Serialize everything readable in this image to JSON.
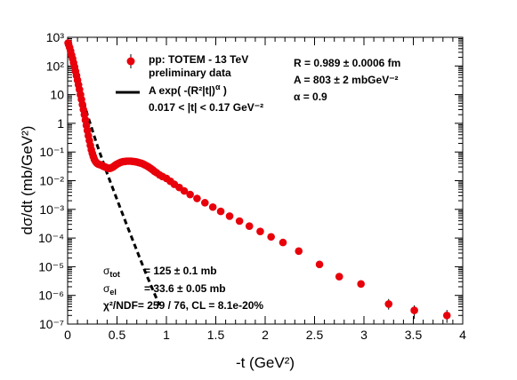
{
  "chart_data": {
    "type": "scatter",
    "xlabel": "-t (GeV²)",
    "ylabel": "dσ/dt (mb/GeV²)",
    "xlim": [
      0,
      4
    ],
    "ylim_log10": [
      -7,
      3
    ],
    "y_scale": "log",
    "x_ticks": [
      "0",
      "0.5",
      "1",
      "1.5",
      "2",
      "2.5",
      "3",
      "3.5",
      "4"
    ],
    "y_ticks": [
      "10⁻⁷",
      "10⁻⁶",
      "10⁻⁵",
      "10⁻⁴",
      "10⁻³",
      "10⁻²",
      "10⁻¹",
      "1",
      "10",
      "10²",
      "10³"
    ],
    "grid": false,
    "series": [
      {
        "name": "pp: TOTEM - 13 TeV preliminary data",
        "color": "#e8000b",
        "marker": "circle",
        "points": [
          [
            0.005,
            635
          ],
          [
            0.01,
            560
          ],
          [
            0.02,
            440
          ],
          [
            0.03,
            330
          ],
          [
            0.04,
            240
          ],
          [
            0.05,
            180
          ],
          [
            0.06,
            130
          ],
          [
            0.07,
            92
          ],
          [
            0.08,
            65
          ],
          [
            0.09,
            46
          ],
          [
            0.1,
            32
          ],
          [
            0.11,
            22
          ],
          [
            0.12,
            15
          ],
          [
            0.13,
            10
          ],
          [
            0.14,
            6.8
          ],
          [
            0.15,
            4.5
          ],
          [
            0.16,
            3.0
          ],
          [
            0.17,
            2.0
          ],
          [
            0.18,
            1.3
          ],
          [
            0.19,
            0.85
          ],
          [
            0.2,
            0.56
          ],
          [
            0.21,
            0.37
          ],
          [
            0.22,
            0.25
          ],
          [
            0.23,
            0.17
          ],
          [
            0.24,
            0.12
          ],
          [
            0.25,
            0.09
          ],
          [
            0.26,
            0.07
          ],
          [
            0.27,
            0.056
          ],
          [
            0.28,
            0.048
          ],
          [
            0.29,
            0.043
          ],
          [
            0.3,
            0.04
          ],
          [
            0.31,
            0.038
          ],
          [
            0.32,
            0.037
          ],
          [
            0.33,
            0.036
          ],
          [
            0.34,
            0.035
          ],
          [
            0.35,
            0.034
          ],
          [
            0.36,
            0.032
          ],
          [
            0.37,
            0.031
          ],
          [
            0.38,
            0.03
          ],
          [
            0.39,
            0.029
          ],
          [
            0.4,
            0.028
          ],
          [
            0.41,
            0.027
          ],
          [
            0.42,
            0.027
          ],
          [
            0.43,
            0.027
          ],
          [
            0.44,
            0.028
          ],
          [
            0.45,
            0.029
          ],
          [
            0.46,
            0.03
          ],
          [
            0.47,
            0.032
          ],
          [
            0.48,
            0.034
          ],
          [
            0.49,
            0.036
          ],
          [
            0.5,
            0.038
          ],
          [
            0.52,
            0.041
          ],
          [
            0.54,
            0.044
          ],
          [
            0.56,
            0.046
          ],
          [
            0.58,
            0.047
          ],
          [
            0.6,
            0.048
          ],
          [
            0.62,
            0.048
          ],
          [
            0.64,
            0.048
          ],
          [
            0.66,
            0.047
          ],
          [
            0.68,
            0.046
          ],
          [
            0.7,
            0.045
          ],
          [
            0.72,
            0.043
          ],
          [
            0.74,
            0.041
          ],
          [
            0.76,
            0.039
          ],
          [
            0.78,
            0.036
          ],
          [
            0.8,
            0.033
          ],
          [
            0.82,
            0.03
          ],
          [
            0.84,
            0.027
          ],
          [
            0.86,
            0.024
          ],
          [
            0.88,
            0.021
          ],
          [
            0.9,
            0.019
          ],
          [
            0.93,
            0.016
          ],
          [
            0.96,
            0.014
          ],
          [
            1.0,
            0.012
          ],
          [
            1.04,
            0.0095
          ],
          [
            1.08,
            0.0075
          ],
          [
            1.13,
            0.0058
          ],
          [
            1.18,
            0.0044
          ],
          [
            1.24,
            0.0033
          ],
          [
            1.31,
            0.0024
          ],
          [
            1.39,
            0.0017
          ],
          [
            1.47,
            0.0012
          ],
          [
            1.55,
            0.00085
          ],
          [
            1.64,
            0.00058
          ],
          [
            1.74,
            0.00039
          ],
          [
            1.84,
            0.00026
          ],
          [
            1.95,
            0.00017
          ],
          [
            2.06,
            0.00011
          ],
          [
            2.18,
            7e-05
          ],
          [
            2.34,
            3.5e-05
          ],
          [
            2.55,
            1.2e-05
          ],
          [
            2.75,
            4.5e-06
          ],
          [
            2.97,
            2.5e-06
          ],
          [
            3.25,
            5e-07
          ],
          [
            3.51,
            3e-07
          ],
          [
            3.84,
            2e-07
          ]
        ],
        "error_bars": [
          [
            3.25,
            3.2e-07,
            7.5e-07
          ],
          [
            3.51,
            1.5e-07,
            4.5e-07
          ],
          [
            3.84,
            1.1e-07,
            3.1e-07
          ]
        ]
      },
      {
        "name": "A exp( -(R²|t|)^α )",
        "color": "#000000",
        "style": "dashed",
        "points": [
          [
            0.0,
            700
          ],
          [
            0.1,
            30
          ],
          [
            0.2,
            2.0
          ],
          [
            0.3,
            0.17
          ],
          [
            0.4,
            0.018
          ],
          [
            0.5,
            0.0022
          ],
          [
            0.6,
            0.00028
          ],
          [
            0.7,
            3.7e-05
          ],
          [
            0.8,
            5e-06
          ],
          [
            0.93,
            4.5e-07
          ]
        ]
      }
    ],
    "legend": {
      "placement": "top-center",
      "entries": [
        {
          "line1": "pp: TOTEM - 13 TeV",
          "line2": "preliminary data"
        },
        {
          "line1": "A exp( -(R²|t|)",
          "sup": "α",
          "line1_end": " )",
          "line2": "0.017 < |t| < 0.17 GeV⁻²"
        }
      ]
    },
    "annotations": {
      "R": "R = 0.989 ± 0.0006 fm",
      "A": "A = 803 ± 2 mbGeV⁻²",
      "alpha": "α = 0.9",
      "sigma_tot_label": "σtot",
      "sigma_tot_value": "= 125 ± 0.1 mb",
      "sigma_el_label": "σel",
      "sigma_el_value": "= 33.6 ± 0.05 mb",
      "chi2": "χ²/NDF= 259 / 76,  CL = 8.1e-20%"
    }
  }
}
